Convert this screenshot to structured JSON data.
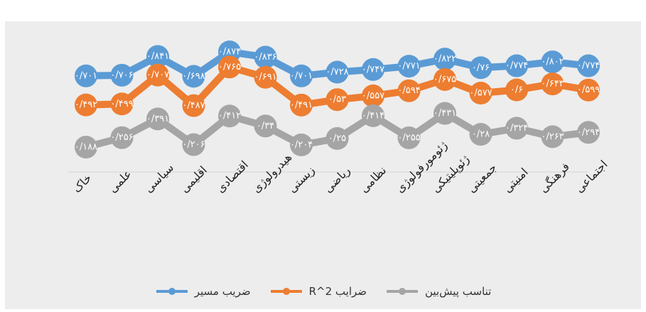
{
  "chart_data": {
    "type": "line",
    "categories": [
      "خاک",
      "علمی",
      "سیاسی",
      "اقلیمی",
      "اقتصادی",
      "هیدرولوژی",
      "زیستی",
      "ریاضی",
      "نظامی",
      "ژئومورفولوژی",
      "ژئوپلیتیکی",
      "جمعیتی",
      "امنیتی",
      "فرهنگی",
      "اجتماعی"
    ],
    "series": [
      {
        "name": "ضریب مسیر",
        "color": "#5b9bd5",
        "values": [
          0.701,
          0.706,
          0.841,
          0.698,
          0.874,
          0.836,
          0.701,
          0.728,
          0.747,
          0.771,
          0.822,
          0.76,
          0.774,
          0.802,
          0.774
        ],
        "labels": [
          "۰/۷۰۱",
          "۰/۷۰۶",
          "۰/۸۴۱",
          "۰/۶۹۸",
          "۰/۸۷۴",
          "۰/۸۳۶",
          "۰/۷۰۱",
          "۰/۷۲۸",
          "۰/۷۴۷",
          "۰/۷۷۱",
          "۰/۸۲۲",
          "۰/۷۶",
          "۰/۷۷۴",
          "۰/۸۰۲",
          "۰/۷۷۴"
        ]
      },
      {
        "name": "ضرایب R^2",
        "color": "#ed7d31",
        "values": [
          0.492,
          0.499,
          0.707,
          0.487,
          0.765,
          0.691,
          0.491,
          0.53,
          0.557,
          0.594,
          0.675,
          0.577,
          0.6,
          0.643,
          0.599
        ],
        "labels": [
          "۰/۴۹۲",
          "۰/۴۹۹",
          "۰/۷۰۷",
          "۰/۴۸۷",
          "۰/۷۶۵",
          "۰/۶۹۱",
          "۰/۴۹۱",
          "۰/۵۳",
          "۰/۵۵۷",
          "۰/۵۹۴",
          "۰/۶۷۵",
          "۰/۵۷۷",
          "۰/۶",
          "۰/۶۴۳",
          "۰/۵۹۹"
        ]
      },
      {
        "name": "تناسب پیش‌بین",
        "color": "#a5a5a5",
        "values": [
          0.188,
          0.256,
          0.391,
          0.206,
          0.412,
          0.34,
          0.204,
          0.25,
          0.414,
          0.255,
          0.431,
          0.28,
          0.324,
          0.263,
          0.294
        ],
        "labels": [
          "۰/۱۸۸",
          "۰/۲۵۶",
          "۰/۳۹۱",
          "۰/۲۰۶",
          "۰/۴۱۲",
          "۰/۳۴",
          "۰/۲۰۴",
          "۰/۲۵",
          "۰/۴۱۴",
          "۰/۲۵۵",
          "۰/۴۳۱",
          "۰/۲۸",
          "۰/۳۲۴",
          "۰/۲۶۳",
          "۰/۲۹۴"
        ]
      }
    ],
    "legend": [
      "تناسب پیش‌بین",
      "ضرایب R^2",
      "ضریب مسیر"
    ],
    "legend_position": "bottom",
    "grid": false
  }
}
